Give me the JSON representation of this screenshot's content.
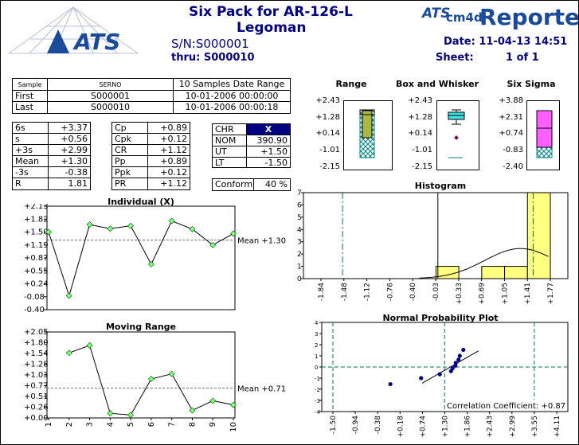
{
  "header": {
    "title": "Six Pack for AR-126-L",
    "subtitle": "Legoman",
    "sn_label": "S/N:",
    "sn_value": "S000001",
    "thru_label": "thru:",
    "thru_value": "S000010",
    "date_label": "Date:",
    "date_value": "11-04-13 14:51",
    "sheet_label": "Sheet:",
    "sheet_value": "1 of 1",
    "brand_left": "ATS",
    "brand_badge_ats": "ATS",
    "brand_badge_cm": "cm4d",
    "brand_reporter": "Reporter"
  },
  "samples_table": {
    "headers": [
      "Sample",
      "SERNO",
      "10 Samples Date Range"
    ],
    "rows": [
      {
        "sample": "First",
        "serno": "S000001",
        "date": "10-01-2006 00:00:00"
      },
      {
        "sample": "Last",
        "serno": "S000010",
        "date": "10-01-2006 00:00:18"
      }
    ]
  },
  "stats_left": [
    {
      "label": "6s",
      "value": "+3.37"
    },
    {
      "label": "s",
      "value": "+0.56"
    },
    {
      "label": "+3s",
      "value": "+2.99"
    },
    {
      "label": "Mean",
      "value": "+1.30"
    },
    {
      "label": "-3s",
      "value": "-0.38"
    },
    {
      "label": "R",
      "value": "1.81"
    }
  ],
  "stats_mid": [
    {
      "label": "Cp",
      "value": "+0.89"
    },
    {
      "label": "Cpk",
      "value": "+0.12"
    },
    {
      "label": "CR",
      "value": "+1.12"
    },
    {
      "label": "Pp",
      "value": "+0.89"
    },
    {
      "label": "Ppk",
      "value": "+0.12"
    },
    {
      "label": "PR",
      "value": "+1.12"
    }
  ],
  "chr_table": {
    "header_label": "CHR",
    "header_value": "X",
    "rows": [
      {
        "label": "NOM",
        "value": "390.90"
      },
      {
        "label": "UT",
        "value": "+1.50"
      },
      {
        "label": "LT",
        "value": "-1.50"
      }
    ],
    "accent": "#000080"
  },
  "conform": {
    "label": "Conform",
    "value": "40 %"
  },
  "colors": {
    "title": "#000080",
    "yellow": "#ffff80",
    "green_box": "#a8b840",
    "cyan_box": "#40e0e8",
    "magenta_box": "#ff60ff",
    "spec_line": "#008040",
    "marker_green": "#80ff80",
    "point_navy": "#000080"
  },
  "mini_charts": [
    {
      "title": "Range",
      "ticks": [
        "+2.43",
        "+1.28",
        "+0.14",
        "-1.01",
        "-2.15"
      ]
    },
    {
      "title": "Box and Whisker",
      "ticks": [
        "+2.43",
        "+1.28",
        "+0.14",
        "-1.01",
        "-2.15"
      ]
    },
    {
      "title": "Six Sigma",
      "ticks": [
        "+3.88",
        "+2.31",
        "+0.74",
        "-0.83",
        "-2.40"
      ]
    }
  ],
  "chart_data": [
    {
      "type": "line",
      "title": "Individual (X)",
      "x": [
        1,
        2,
        3,
        4,
        5,
        6,
        7,
        8,
        9,
        10
      ],
      "values": [
        1.5,
        -0.06,
        1.68,
        1.58,
        1.65,
        0.71,
        1.77,
        1.57,
        1.18,
        1.46
      ],
      "mean": 1.3,
      "mean_label": "Mean +1.30",
      "ylim": [
        -0.4,
        2.13
      ],
      "yticks": [
        "+2.13",
        "+1.82",
        "+1.50",
        "+1.19",
        "+0.87",
        "+0.55",
        "+0.24",
        "-0.08",
        "-0.40"
      ]
    },
    {
      "type": "line",
      "title": "Moving Range",
      "x": [
        2,
        3,
        4,
        5,
        6,
        7,
        8,
        9,
        10
      ],
      "values": [
        1.55,
        1.73,
        0.11,
        0.07,
        0.93,
        1.05,
        0.18,
        0.41,
        0.31
      ],
      "mean": 0.71,
      "mean_label": "Mean +0.71",
      "ylim": [
        0.0,
        2.05
      ],
      "xticks": [
        "1",
        "2",
        "3",
        "4",
        "5",
        "6",
        "7",
        "8",
        "9",
        "10"
      ],
      "yticks": [
        "+2.05",
        "+1.80",
        "+1.54",
        "+1.28",
        "+1.03",
        "+0.77",
        "+0.51",
        "+0.26",
        "+0.00"
      ]
    },
    {
      "type": "bar",
      "title": "Histogram",
      "xticks": [
        "-1.84",
        "-1.48",
        "-1.12",
        "-0.76",
        "-0.40",
        "-0.03",
        "+0.33",
        "+0.69",
        "+1.05",
        "+1.41",
        "+1.77"
      ],
      "bins": [
        {
          "from": "-0.03",
          "to": "+0.33",
          "count": 1
        },
        {
          "from": "+0.69",
          "to": "+1.05",
          "count": 1
        },
        {
          "from": "+1.05",
          "to": "+1.41",
          "count": 1
        },
        {
          "from": "+1.41",
          "to": "+1.77",
          "count": 7
        }
      ],
      "ylim": [
        0,
        7
      ],
      "yticks": [
        "7",
        "6",
        "5",
        "4",
        "3",
        "2",
        "1",
        "0"
      ],
      "spec_limits": [
        -1.5,
        1.5
      ],
      "nominal": 0.0
    },
    {
      "type": "scatter",
      "title": "Normal Probability Plot",
      "xticks": [
        "-1.50",
        "-0.94",
        "-0.38",
        "+0.18",
        "+0.74",
        "+1.30",
        "+1.86",
        "+2.43",
        "+2.99",
        "+3.55",
        "+4.11"
      ],
      "yticks": [
        "4",
        "3",
        "2",
        "1",
        "0",
        "-1",
        "-2",
        "-3",
        "-4"
      ],
      "x": [
        -0.06,
        0.71,
        1.18,
        1.46,
        1.5,
        1.57,
        1.58,
        1.65,
        1.68,
        1.77
      ],
      "y": [
        -1.54,
        -1.0,
        -0.65,
        -0.37,
        -0.12,
        0.12,
        0.37,
        0.65,
        1.0,
        1.54
      ],
      "xlim": [
        -1.5,
        4.11
      ],
      "ylim": [
        -4,
        4
      ],
      "annotation": "Correlation Coefficient: +0.87"
    }
  ]
}
